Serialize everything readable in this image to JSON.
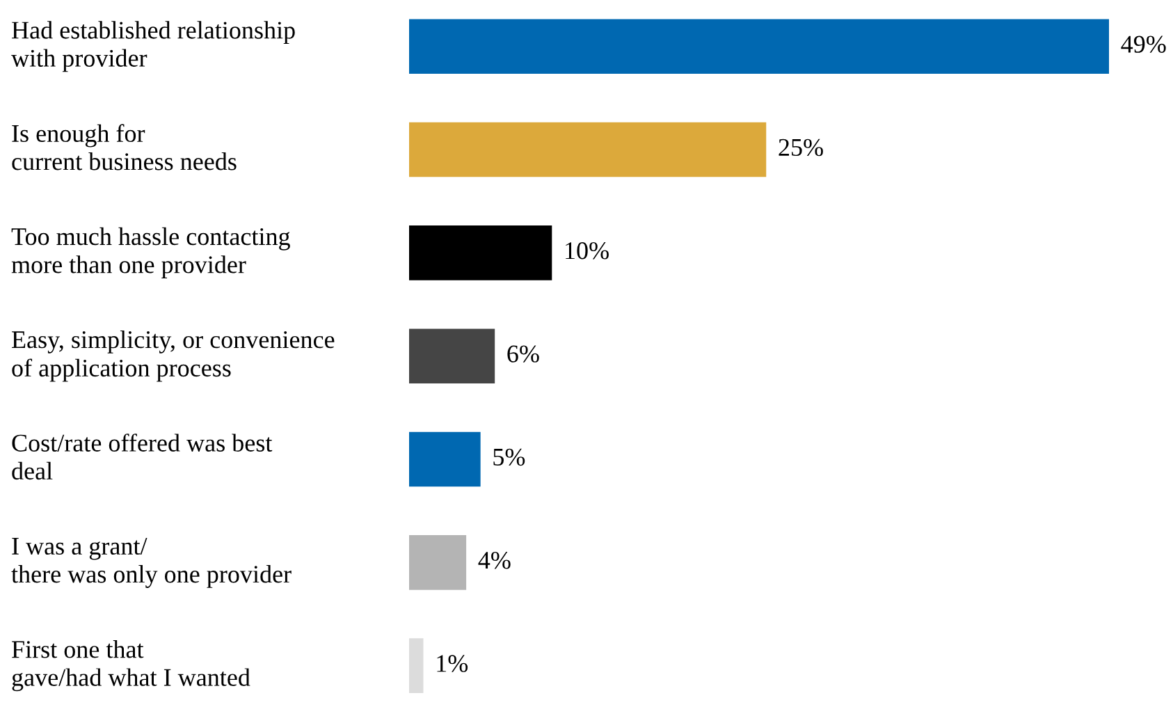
{
  "chart_data": {
    "type": "bar",
    "orientation": "horizontal",
    "categories": [
      "Had established relationship\nwith provider",
      "Is enough for\ncurrent business needs",
      "Too much hassle contacting\nmore than one provider",
      "Easy, simplicity, or convenience\nof application process",
      "Cost/rate offered was best\ndeal",
      "I was a grant/\nthere was only one provider",
      "First one that\ngave/had what I wanted"
    ],
    "values": [
      49,
      25,
      10,
      6,
      5,
      4,
      1
    ],
    "colors": [
      "#0068b1",
      "#dca93b",
      "#000000",
      "#454545",
      "#0068b1",
      "#b4b4b4",
      "#dcdcdc"
    ],
    "value_labels": [
      "49%",
      "25%",
      "10%",
      "6%",
      "5%",
      "4%",
      "1%"
    ],
    "xlim": [
      0,
      49
    ]
  }
}
